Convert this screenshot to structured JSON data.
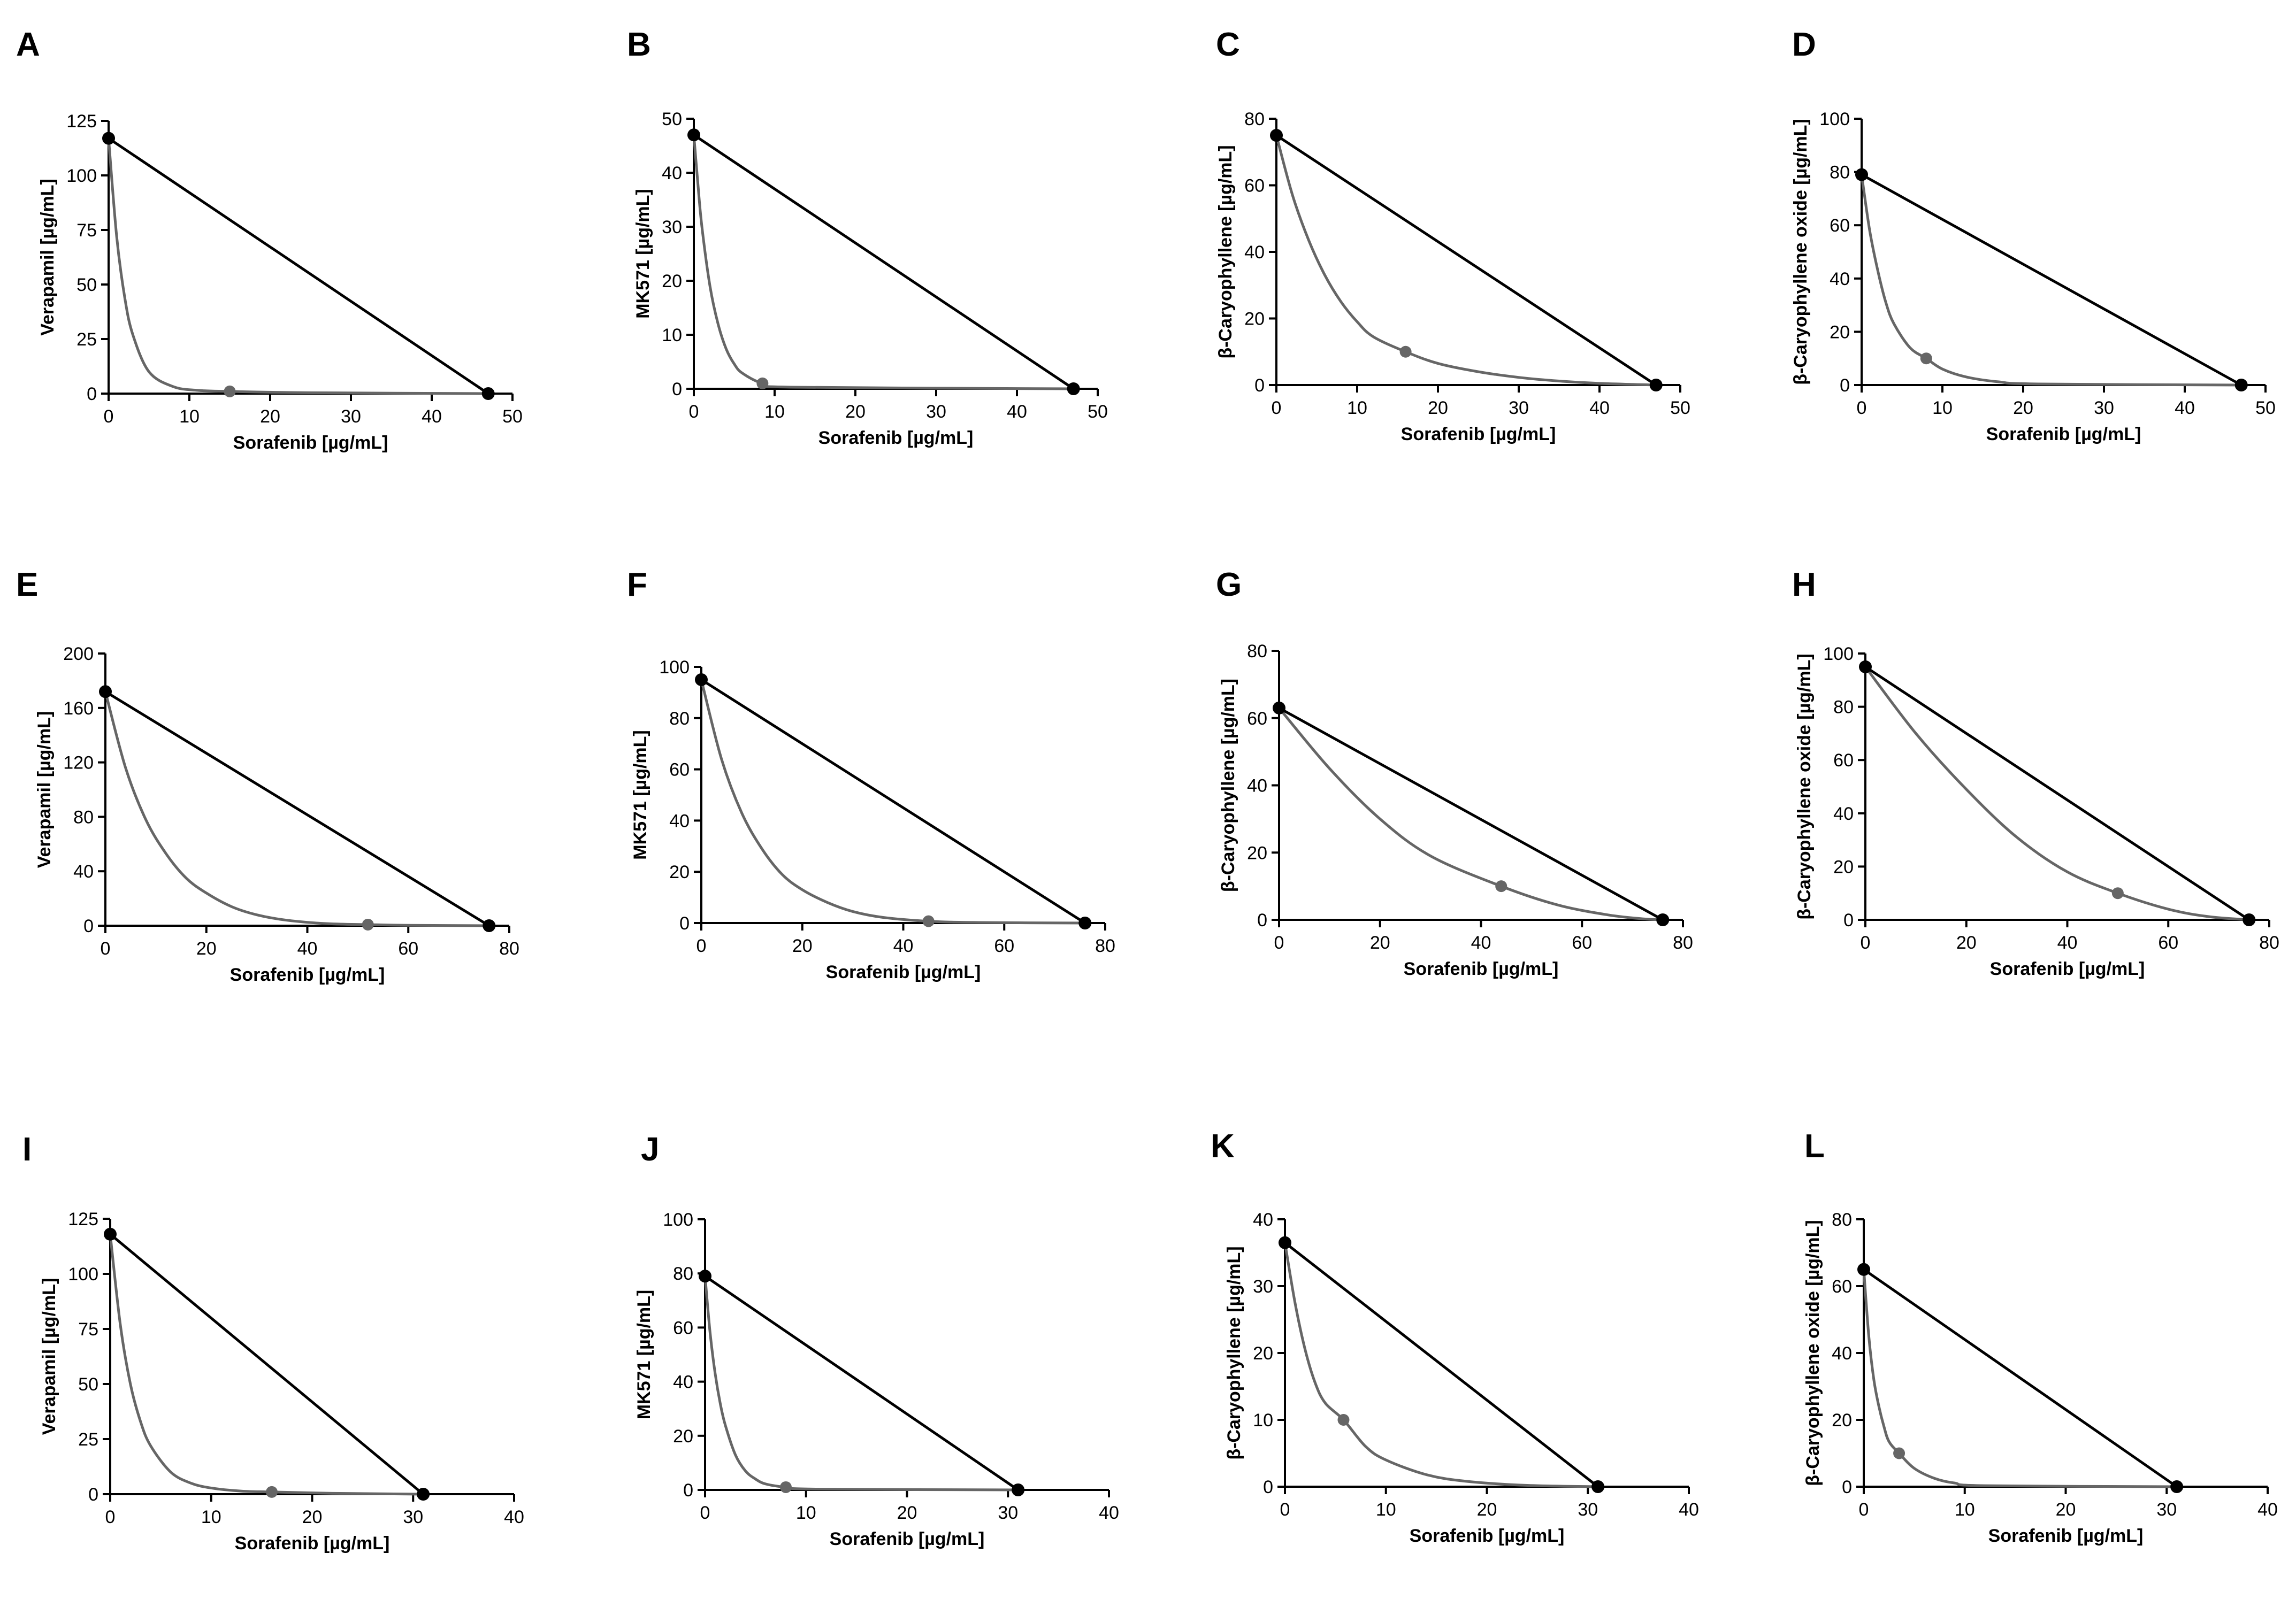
{
  "colors": {
    "additivity": "#000000",
    "isobole": "#666666",
    "axis": "#000000"
  },
  "chart_data": [
    {
      "panel": "A",
      "type": "line",
      "xlabel": "Sorafenib [µg/mL]",
      "ylabel": "Verapamil [µg/mL]",
      "xlim": [
        0,
        50
      ],
      "ylim": [
        0,
        125
      ],
      "xticks": [
        "0",
        "10",
        "20",
        "30",
        "40",
        "50"
      ],
      "yticks": [
        "0",
        "25",
        "50",
        "75",
        "100",
        "125"
      ],
      "series": [
        {
          "name": "additivity line",
          "points": [
            [
              0,
              117
            ],
            [
              47,
              0
            ]
          ]
        },
        {
          "name": "isobologram",
          "points": [
            [
              0,
              117
            ],
            [
              1,
              72
            ],
            [
              2,
              44
            ],
            [
              3,
              27
            ],
            [
              5,
              10
            ],
            [
              8,
              3.2
            ],
            [
              11,
              1.5
            ],
            [
              15,
              1
            ],
            [
              25,
              0.4
            ],
            [
              47,
              0
            ]
          ],
          "marker": [
            15,
            1
          ]
        }
      ]
    },
    {
      "panel": "B",
      "type": "line",
      "xlabel": "Sorafenib [µg/mL]",
      "ylabel": "MK571 [µg/mL]",
      "xlim": [
        0,
        50
      ],
      "ylim": [
        0,
        50
      ],
      "xticks": [
        "0",
        "10",
        "20",
        "30",
        "40",
        "50"
      ],
      "yticks": [
        "0",
        "10",
        "20",
        "30",
        "40",
        "50"
      ],
      "series": [
        {
          "name": "additivity line",
          "points": [
            [
              0,
              47
            ],
            [
              47,
              0
            ]
          ]
        },
        {
          "name": "isobologram",
          "points": [
            [
              0,
              47
            ],
            [
              0.5,
              38
            ],
            [
              1,
              30
            ],
            [
              2,
              19
            ],
            [
              3,
              12
            ],
            [
              4,
              7.4
            ],
            [
              5,
              4.6
            ],
            [
              6,
              2.9
            ],
            [
              8.5,
              1
            ],
            [
              12,
              0.3
            ],
            [
              47,
              0
            ]
          ],
          "marker": [
            8.5,
            1
          ]
        }
      ]
    },
    {
      "panel": "C",
      "type": "line",
      "xlabel": "Sorafenib [µg/mL]",
      "ylabel": "β-Caryophyllene [µg/mL]",
      "xlim": [
        0,
        50
      ],
      "ylim": [
        0,
        80
      ],
      "xticks": [
        "0",
        "10",
        "20",
        "30",
        "40",
        "50"
      ],
      "yticks": [
        "0",
        "20",
        "40",
        "60",
        "80"
      ],
      "series": [
        {
          "name": "additivity line",
          "points": [
            [
              0,
              75
            ],
            [
              47,
              0
            ]
          ]
        },
        {
          "name": "isobologram",
          "points": [
            [
              0,
              75
            ],
            [
              2,
              57
            ],
            [
              4,
              43.5
            ],
            [
              6,
              33
            ],
            [
              8,
              25
            ],
            [
              10,
              19
            ],
            [
              12,
              14.5
            ],
            [
              16,
              10
            ],
            [
              20,
              6.5
            ],
            [
              25,
              4
            ],
            [
              30,
              2.3
            ],
            [
              35,
              1.2
            ],
            [
              40,
              0.5
            ],
            [
              47,
              0
            ]
          ],
          "marker": [
            16,
            10
          ]
        }
      ]
    },
    {
      "panel": "D",
      "type": "line",
      "xlabel": "Sorafenib [µg/mL]",
      "ylabel": "β-Caryophyllene oxide [µg/mL]",
      "xlim": [
        0,
        50
      ],
      "ylim": [
        0,
        100
      ],
      "xticks": [
        "0",
        "10",
        "20",
        "30",
        "40",
        "50"
      ],
      "yticks": [
        "0",
        "20",
        "40",
        "60",
        "80",
        "100"
      ],
      "series": [
        {
          "name": "additivity line",
          "points": [
            [
              0,
              79
            ],
            [
              47,
              0
            ]
          ]
        },
        {
          "name": "isobologram",
          "points": [
            [
              0,
              79
            ],
            [
              1,
              58
            ],
            [
              2,
              43
            ],
            [
              3,
              31
            ],
            [
              4,
              23
            ],
            [
              6,
              14
            ],
            [
              8,
              10
            ],
            [
              10,
              6
            ],
            [
              13,
              3
            ],
            [
              17,
              1.2
            ],
            [
              22,
              0.4
            ],
            [
              47,
              0
            ]
          ],
          "marker": [
            8,
            10
          ]
        }
      ]
    },
    {
      "panel": "E",
      "type": "line",
      "xlabel": "Sorafenib [µg/mL]",
      "ylabel": "Verapamil [µg/mL]",
      "xlim": [
        0,
        80
      ],
      "ylim": [
        0,
        200
      ],
      "xticks": [
        "0",
        "20",
        "40",
        "60",
        "80"
      ],
      "yticks": [
        "0",
        "40",
        "80",
        "120",
        "160",
        "200"
      ],
      "series": [
        {
          "name": "additivity line",
          "points": [
            [
              0,
              172
            ],
            [
              76,
              0
            ]
          ]
        },
        {
          "name": "isobologram",
          "points": [
            [
              0,
              172
            ],
            [
              4,
              116
            ],
            [
              8,
              78
            ],
            [
              12,
              53
            ],
            [
              16,
              35
            ],
            [
              20,
              24
            ],
            [
              25,
              14
            ],
            [
              30,
              8
            ],
            [
              36,
              4
            ],
            [
              44,
              1.5
            ],
            [
              52,
              0.8
            ],
            [
              60,
              0.3
            ],
            [
              76,
              0
            ]
          ],
          "marker": [
            52,
            0.8
          ]
        }
      ]
    },
    {
      "panel": "F",
      "type": "line",
      "xlabel": "Sorafenib [µg/mL]",
      "ylabel": "MK571 [µg/mL]",
      "xlim": [
        0,
        80
      ],
      "ylim": [
        0,
        100
      ],
      "xticks": [
        "0",
        "20",
        "40",
        "60",
        "80"
      ],
      "yticks": [
        "0",
        "20",
        "40",
        "60",
        "80",
        "100"
      ],
      "series": [
        {
          "name": "additivity line",
          "points": [
            [
              0,
              95
            ],
            [
              76,
              0
            ]
          ]
        },
        {
          "name": "isobologram",
          "points": [
            [
              0,
              95
            ],
            [
              4,
              64
            ],
            [
              8,
              43
            ],
            [
              12,
              29
            ],
            [
              16,
              19
            ],
            [
              20,
              13
            ],
            [
              25,
              8
            ],
            [
              30,
              4.5
            ],
            [
              36,
              2.2
            ],
            [
              45,
              0.7
            ],
            [
              55,
              0.2
            ],
            [
              76,
              0
            ]
          ],
          "marker": [
            45,
            0.7
          ]
        }
      ]
    },
    {
      "panel": "G",
      "type": "line",
      "xlabel": "Sorafenib [µg/mL]",
      "ylabel": "β-Caryophyllene [µg/mL]",
      "xlim": [
        0,
        80
      ],
      "ylim": [
        0,
        80
      ],
      "xticks": [
        "0",
        "20",
        "40",
        "60",
        "80"
      ],
      "yticks": [
        "0",
        "20",
        "40",
        "60",
        "80"
      ],
      "series": [
        {
          "name": "additivity line",
          "points": [
            [
              0,
              63
            ],
            [
              76,
              0
            ]
          ]
        },
        {
          "name": "isobologram",
          "points": [
            [
              0,
              63
            ],
            [
              10,
              45
            ],
            [
              20,
              30
            ],
            [
              30,
              19
            ],
            [
              44,
              10
            ],
            [
              55,
              4.5
            ],
            [
              65,
              1.5
            ],
            [
              72,
              0.3
            ],
            [
              76,
              0
            ]
          ],
          "marker": [
            44,
            10
          ]
        }
      ]
    },
    {
      "panel": "H",
      "type": "line",
      "xlabel": "Sorafenib [µg/mL]",
      "ylabel": "β-Caryophyllene oxide [µg/mL]",
      "xlim": [
        0,
        80
      ],
      "ylim": [
        0,
        100
      ],
      "xticks": [
        "0",
        "20",
        "40",
        "60",
        "80"
      ],
      "yticks": [
        "0",
        "20",
        "40",
        "60",
        "80",
        "100"
      ],
      "series": [
        {
          "name": "additivity line",
          "points": [
            [
              0,
              95
            ],
            [
              76,
              0
            ]
          ]
        },
        {
          "name": "isobologram",
          "points": [
            [
              0,
              95
            ],
            [
              10,
              70
            ],
            [
              20,
              49
            ],
            [
              30,
              31
            ],
            [
              40,
              18
            ],
            [
              50,
              10
            ],
            [
              60,
              4
            ],
            [
              68,
              1.2
            ],
            [
              76,
              0
            ]
          ],
          "marker": [
            50,
            10
          ]
        }
      ]
    },
    {
      "panel": "I",
      "type": "line",
      "xlabel": "Sorafenib [µg/mL]",
      "ylabel": "Verapamil [µg/mL]",
      "xlim": [
        0,
        40
      ],
      "ylim": [
        0,
        125
      ],
      "xticks": [
        "0",
        "10",
        "20",
        "30",
        "40"
      ],
      "yticks": [
        "0",
        "25",
        "50",
        "75",
        "100",
        "125"
      ],
      "series": [
        {
          "name": "additivity line",
          "points": [
            [
              0,
              118
            ],
            [
              31,
              0
            ]
          ]
        },
        {
          "name": "isobologram",
          "points": [
            [
              0,
              118
            ],
            [
              1,
              77
            ],
            [
              2,
              50
            ],
            [
              3,
              33
            ],
            [
              4,
              22
            ],
            [
              6,
              10
            ],
            [
              8,
              5
            ],
            [
              10,
              2.8
            ],
            [
              13,
              1.4
            ],
            [
              16,
              1
            ],
            [
              22,
              0.4
            ],
            [
              31,
              0
            ]
          ],
          "marker": [
            16,
            1
          ]
        }
      ]
    },
    {
      "panel": "J",
      "type": "line",
      "xlabel": "Sorafenib [µg/mL]",
      "ylabel": "MK571 [µg/mL]",
      "xlim": [
        0,
        40
      ],
      "ylim": [
        0,
        100
      ],
      "xticks": [
        "0",
        "10",
        "20",
        "30",
        "40"
      ],
      "yticks": [
        "0",
        "20",
        "40",
        "60",
        "80",
        "100"
      ],
      "series": [
        {
          "name": "additivity line",
          "points": [
            [
              0,
              79
            ],
            [
              31,
              0
            ]
          ]
        },
        {
          "name": "isobologram",
          "points": [
            [
              0,
              79
            ],
            [
              0.5,
              58
            ],
            [
              1,
              43
            ],
            [
              1.5,
              32
            ],
            [
              2,
              24
            ],
            [
              3,
              13
            ],
            [
              4,
              7
            ],
            [
              5,
              4
            ],
            [
              6,
              2.2
            ],
            [
              8,
              1
            ],
            [
              11,
              0.3
            ],
            [
              31,
              0
            ]
          ],
          "marker": [
            8,
            1
          ]
        }
      ]
    },
    {
      "panel": "K",
      "type": "line",
      "xlabel": "Sorafenib [µg/mL]",
      "ylabel": "β-Caryophyllene [µg/mL]",
      "xlim": [
        0,
        40
      ],
      "ylim": [
        0,
        40
      ],
      "xticks": [
        "0",
        "10",
        "20",
        "30",
        "40"
      ],
      "yticks": [
        "0",
        "10",
        "20",
        "30",
        "40"
      ],
      "series": [
        {
          "name": "additivity line",
          "points": [
            [
              0,
              36.5
            ],
            [
              31,
              0
            ]
          ]
        },
        {
          "name": "isobologram",
          "points": [
            [
              0,
              36.5
            ],
            [
              1,
              27.5
            ],
            [
              2,
              20.5
            ],
            [
              3,
              15.5
            ],
            [
              4,
              12.5
            ],
            [
              5.8,
              10
            ],
            [
              8,
              6
            ],
            [
              10,
              4
            ],
            [
              14,
              1.8
            ],
            [
              18,
              0.8
            ],
            [
              24,
              0.2
            ],
            [
              31,
              0
            ]
          ],
          "marker": [
            5.8,
            10
          ]
        }
      ]
    },
    {
      "panel": "L",
      "type": "line",
      "xlabel": "Sorafenib [µg/mL]",
      "ylabel": "β-Caryophyllene oxide [µg/mL]",
      "xlim": [
        0,
        40
      ],
      "ylim": [
        0,
        80
      ],
      "xticks": [
        "0",
        "10",
        "20",
        "30",
        "40"
      ],
      "yticks": [
        "0",
        "20",
        "40",
        "60",
        "80"
      ],
      "series": [
        {
          "name": "additivity line",
          "points": [
            [
              0,
              65
            ],
            [
              31,
              0
            ]
          ]
        },
        {
          "name": "isobologram",
          "points": [
            [
              0,
              65
            ],
            [
              0.5,
              45
            ],
            [
              1,
              32
            ],
            [
              1.5,
              24
            ],
            [
              2,
              18
            ],
            [
              2.5,
              13.5
            ],
            [
              3.5,
              10
            ],
            [
              5,
              5.5
            ],
            [
              7,
              2.5
            ],
            [
              9,
              1.1
            ],
            [
              12,
              0.3
            ],
            [
              31,
              0
            ]
          ],
          "marker": [
            3.5,
            10
          ]
        }
      ]
    }
  ]
}
